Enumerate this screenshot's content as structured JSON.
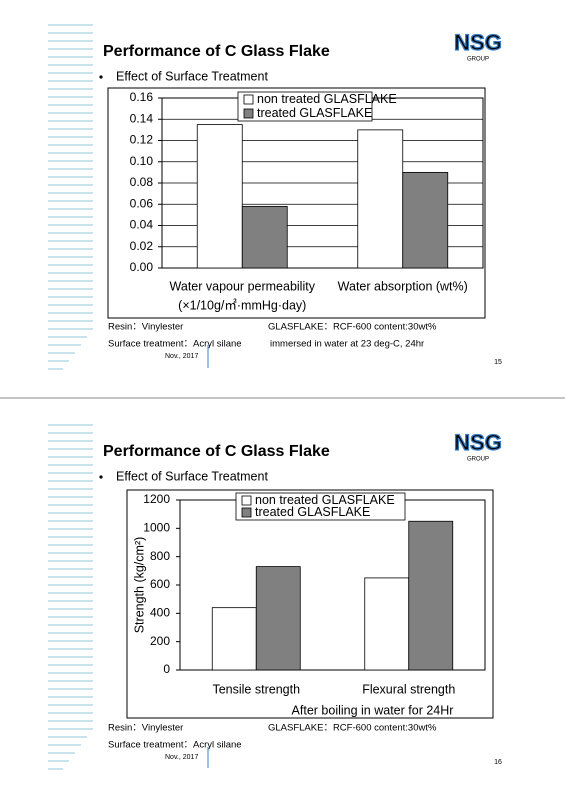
{
  "slides": [
    {
      "title": "Performance of C Glass Flake",
      "logo": "NSG",
      "logo_sub": "GROUP",
      "bullet": "Effect of Surface Treatment",
      "notes": [
        "Resin：Vinylester",
        "GLASFLAKE：RCF-600 content:30wt%",
        "Surface treatment：Acryl silane",
        "immersed in water at 23 deg-C, 24hr"
      ],
      "date": "Nov., 2017",
      "page": "15"
    },
    {
      "title": "Performance of C Glass Flake",
      "logo": "NSG",
      "logo_sub": "GROUP",
      "bullet": "Effect of Surface Treatment",
      "notes": [
        "Resin：Vinylester",
        "GLASFLAKE：RCF-600 content:30wt%",
        "Surface treatment：Acryl silane"
      ],
      "date": "Nov., 2017",
      "page": "16"
    }
  ],
  "chart_data": [
    {
      "type": "bar",
      "categories": [
        "Water vapour permeability",
        "Water absorption (wt%)"
      ],
      "category_note": "(×1/10g/㎡·mmHg·day)",
      "series": [
        {
          "name": "non treated GLASFLAKE",
          "color": "#ffffff",
          "values": [
            0.135,
            0.13
          ]
        },
        {
          "name": "treated GLASFLAKE",
          "color": "#808080",
          "values": [
            0.058,
            0.09
          ]
        }
      ],
      "ylim": [
        0,
        0.16
      ],
      "yticks": [
        {
          "value": 0,
          "label": "0.00"
        },
        0.02,
        0.04,
        0.06,
        0.08,
        {
          "value": 0.1,
          "label": "0.10"
        },
        0.12,
        0.14,
        0.16
      ],
      "grid": true
    },
    {
      "type": "bar",
      "categories": [
        "Tensile strength",
        "Flexural strength"
      ],
      "x_label": "After boiling in water for 24Hr",
      "y_label": "Strength (kg/cm²)",
      "series": [
        {
          "name": "non treated GLASFLAKE",
          "color": "#ffffff",
          "values": [
            440,
            650
          ]
        },
        {
          "name": "treated GLASFLAKE",
          "color": "#808080",
          "values": [
            730,
            1050
          ]
        }
      ],
      "ylim": [
        0,
        1200
      ],
      "yticks": [
        0,
        200,
        400,
        600,
        800,
        1000,
        1200
      ],
      "grid": false
    }
  ]
}
